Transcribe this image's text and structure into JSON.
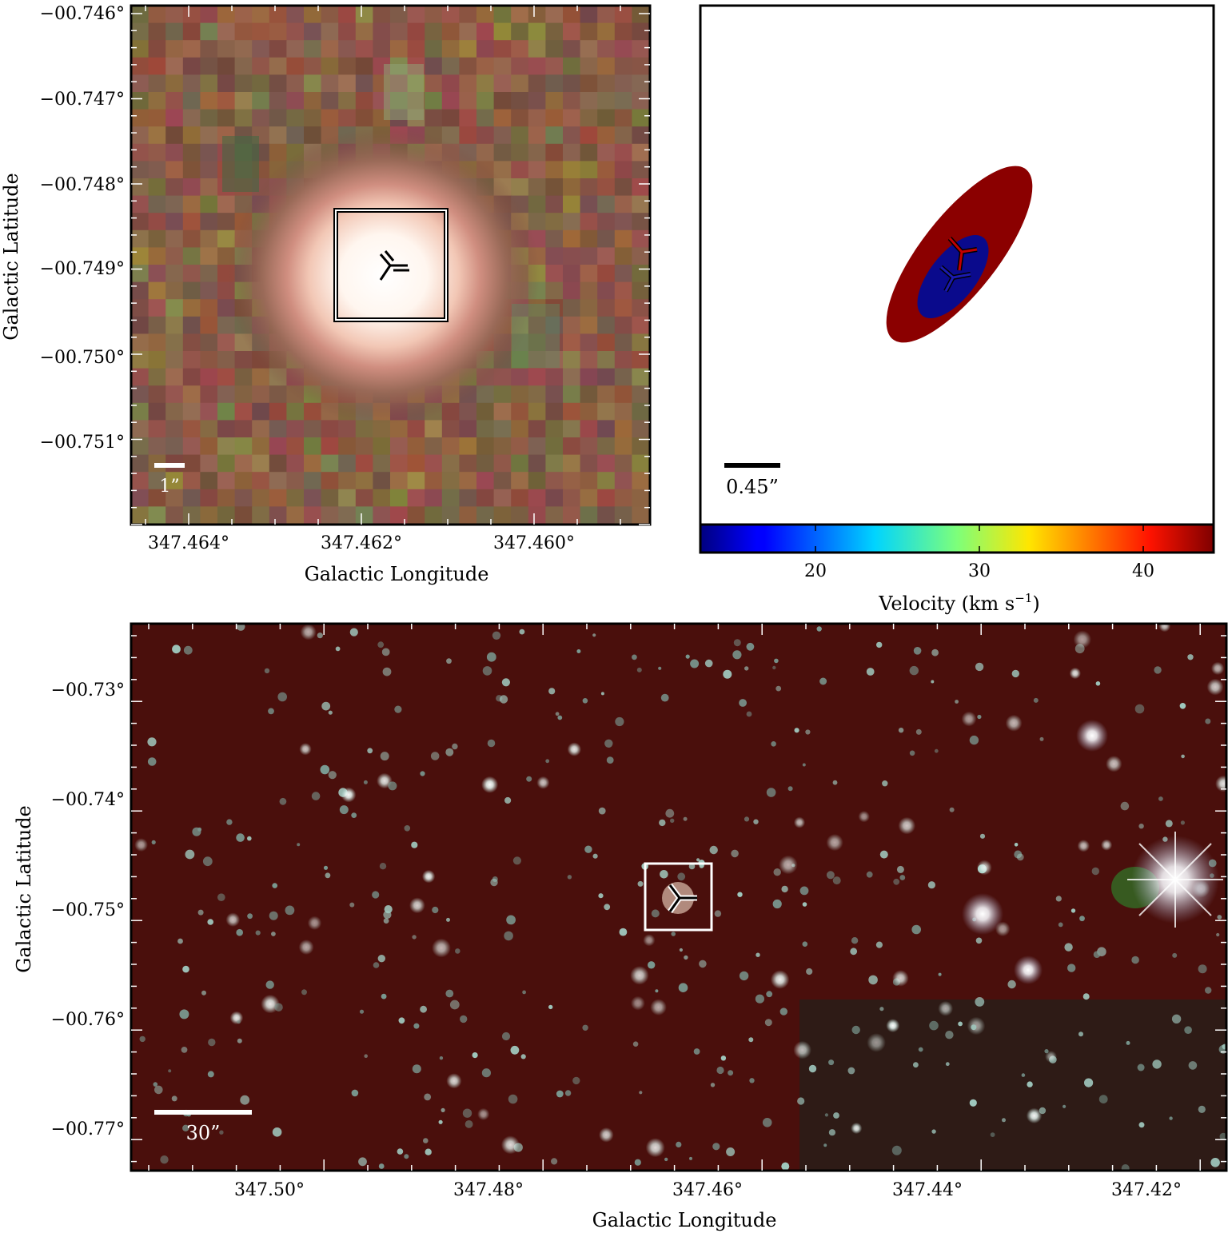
{
  "panel_top_left": {
    "y_ticks": [
      "−00.746°",
      "−00.747°",
      "−00.748°",
      "−00.749°",
      "−00.750°",
      "−00.751°"
    ],
    "x_ticks": [
      "347.464°",
      "347.462°",
      "347.460°"
    ],
    "xlabel": "Galactic Longitude",
    "ylabel": "Galactic Latitude",
    "scale_bar": "1”"
  },
  "panel_top_right": {
    "scale_bar": "0.45”",
    "colorbar": {
      "ticks": [
        "20",
        "30",
        "40"
      ],
      "label_main": "Velocity (km s",
      "label_exp": "−1",
      "label_close": ")",
      "range_kms": [
        13.5,
        44.5
      ],
      "colormap": "jet"
    },
    "ellipses": [
      {
        "name": "redshifted",
        "color": "#8b0000"
      },
      {
        "name": "blueshifted",
        "color": "#0a0a8c"
      }
    ]
  },
  "panel_bottom": {
    "y_ticks": [
      "−00.73°",
      "−00.74°",
      "−00.75°",
      "−00.76°",
      "−00.77°"
    ],
    "x_ticks": [
      "347.50°",
      "347.48°",
      "347.46°",
      "347.44°",
      "347.42°"
    ],
    "xlabel": "Galactic Longitude",
    "ylabel": "Galactic Latitude",
    "scale_bar": "30”"
  }
}
